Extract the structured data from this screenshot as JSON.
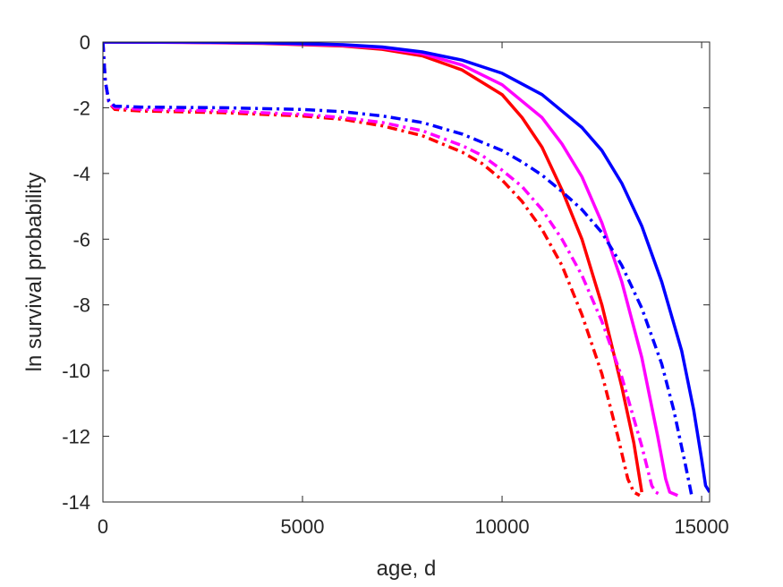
{
  "chart_data": {
    "type": "line",
    "title": "",
    "xlabel": "age, d",
    "ylabel": "ln survival probability",
    "xlim": [
      0,
      15200
    ],
    "ylim": [
      -14,
      0
    ],
    "xticks": [
      0,
      5000,
      10000,
      15000
    ],
    "xtick_labels": [
      "0",
      "5000",
      "10000",
      "15000"
    ],
    "yticks": [
      0,
      -2,
      -4,
      -6,
      -8,
      -10,
      -12,
      -14
    ],
    "ytick_labels": [
      "0",
      "-2",
      "-4",
      "-6",
      "-8",
      "-10",
      "-12",
      "-14"
    ],
    "grid": false,
    "legend": "none",
    "series": [
      {
        "color": "#ff0000",
        "style": "solid",
        "points": [
          [
            0,
            0
          ],
          [
            2000,
            -0.01
          ],
          [
            4000,
            -0.04
          ],
          [
            6000,
            -0.12
          ],
          [
            7000,
            -0.22
          ],
          [
            8000,
            -0.42
          ],
          [
            9000,
            -0.85
          ],
          [
            10000,
            -1.6
          ],
          [
            10500,
            -2.3
          ],
          [
            11000,
            -3.2
          ],
          [
            11500,
            -4.5
          ],
          [
            12000,
            -6.0
          ],
          [
            12500,
            -8.0
          ],
          [
            13000,
            -10.5
          ],
          [
            13300,
            -12.2
          ],
          [
            13500,
            -13.7
          ]
        ]
      },
      {
        "color": "#ff00ff",
        "style": "solid",
        "points": [
          [
            0,
            0
          ],
          [
            2000,
            -0.01
          ],
          [
            4000,
            -0.03
          ],
          [
            6000,
            -0.1
          ],
          [
            7000,
            -0.18
          ],
          [
            8000,
            -0.35
          ],
          [
            9000,
            -0.7
          ],
          [
            10000,
            -1.3
          ],
          [
            11000,
            -2.3
          ],
          [
            11500,
            -3.1
          ],
          [
            12000,
            -4.1
          ],
          [
            12500,
            -5.5
          ],
          [
            13000,
            -7.3
          ],
          [
            13500,
            -9.6
          ],
          [
            13900,
            -12.0
          ],
          [
            14100,
            -13.3
          ],
          [
            14200,
            -13.7
          ],
          [
            14400,
            -13.8
          ]
        ]
      },
      {
        "color": "#0000ff",
        "style": "solid",
        "points": [
          [
            0,
            0
          ],
          [
            2000,
            0
          ],
          [
            4000,
            -0.02
          ],
          [
            6000,
            -0.08
          ],
          [
            7000,
            -0.15
          ],
          [
            8000,
            -0.3
          ],
          [
            9000,
            -0.55
          ],
          [
            10000,
            -0.95
          ],
          [
            11000,
            -1.6
          ],
          [
            12000,
            -2.6
          ],
          [
            12500,
            -3.3
          ],
          [
            13000,
            -4.3
          ],
          [
            13500,
            -5.6
          ],
          [
            14000,
            -7.3
          ],
          [
            14500,
            -9.4
          ],
          [
            14800,
            -11.2
          ],
          [
            15000,
            -12.7
          ],
          [
            15100,
            -13.5
          ],
          [
            15200,
            -13.7
          ]
        ]
      },
      {
        "color": "#ff0000",
        "style": "dashdot",
        "points": [
          [
            0,
            0
          ],
          [
            60,
            -1.2
          ],
          [
            150,
            -1.85
          ],
          [
            300,
            -2.05
          ],
          [
            1000,
            -2.1
          ],
          [
            3000,
            -2.15
          ],
          [
            5000,
            -2.25
          ],
          [
            6000,
            -2.35
          ],
          [
            7000,
            -2.55
          ],
          [
            8000,
            -2.85
          ],
          [
            9000,
            -3.35
          ],
          [
            9500,
            -3.7
          ],
          [
            10000,
            -4.2
          ],
          [
            10500,
            -4.85
          ],
          [
            11000,
            -5.7
          ],
          [
            11500,
            -6.8
          ],
          [
            12000,
            -8.3
          ],
          [
            12500,
            -10.1
          ],
          [
            12900,
            -12.0
          ],
          [
            13150,
            -13.3
          ],
          [
            13300,
            -13.7
          ],
          [
            13450,
            -13.8
          ]
        ]
      },
      {
        "color": "#ff00ff",
        "style": "dashdot",
        "points": [
          [
            0,
            0
          ],
          [
            60,
            -1.2
          ],
          [
            150,
            -1.85
          ],
          [
            300,
            -2.0
          ],
          [
            1000,
            -2.05
          ],
          [
            3000,
            -2.1
          ],
          [
            5000,
            -2.2
          ],
          [
            6000,
            -2.3
          ],
          [
            7000,
            -2.45
          ],
          [
            8000,
            -2.7
          ],
          [
            9000,
            -3.15
          ],
          [
            9500,
            -3.45
          ],
          [
            10000,
            -3.9
          ],
          [
            10500,
            -4.4
          ],
          [
            11000,
            -5.1
          ],
          [
            11500,
            -6.0
          ],
          [
            12000,
            -7.1
          ],
          [
            12500,
            -8.5
          ],
          [
            13000,
            -10.2
          ],
          [
            13500,
            -12.3
          ],
          [
            13750,
            -13.5
          ],
          [
            13850,
            -13.7
          ],
          [
            14000,
            -13.8
          ]
        ]
      },
      {
        "color": "#0000ff",
        "style": "dashdot",
        "points": [
          [
            0,
            0
          ],
          [
            60,
            -1.2
          ],
          [
            150,
            -1.8
          ],
          [
            300,
            -1.95
          ],
          [
            1000,
            -1.98
          ],
          [
            3000,
            -2.0
          ],
          [
            5000,
            -2.05
          ],
          [
            6000,
            -2.12
          ],
          [
            7000,
            -2.25
          ],
          [
            8000,
            -2.45
          ],
          [
            9000,
            -2.8
          ],
          [
            10000,
            -3.3
          ],
          [
            10500,
            -3.65
          ],
          [
            11000,
            -4.05
          ],
          [
            11500,
            -4.55
          ],
          [
            12000,
            -5.1
          ],
          [
            12500,
            -5.8
          ],
          [
            13000,
            -6.8
          ],
          [
            13500,
            -8.1
          ],
          [
            14000,
            -9.8
          ],
          [
            14300,
            -11.2
          ],
          [
            14600,
            -12.9
          ],
          [
            14700,
            -13.5
          ],
          [
            14750,
            -13.8
          ]
        ]
      }
    ]
  }
}
